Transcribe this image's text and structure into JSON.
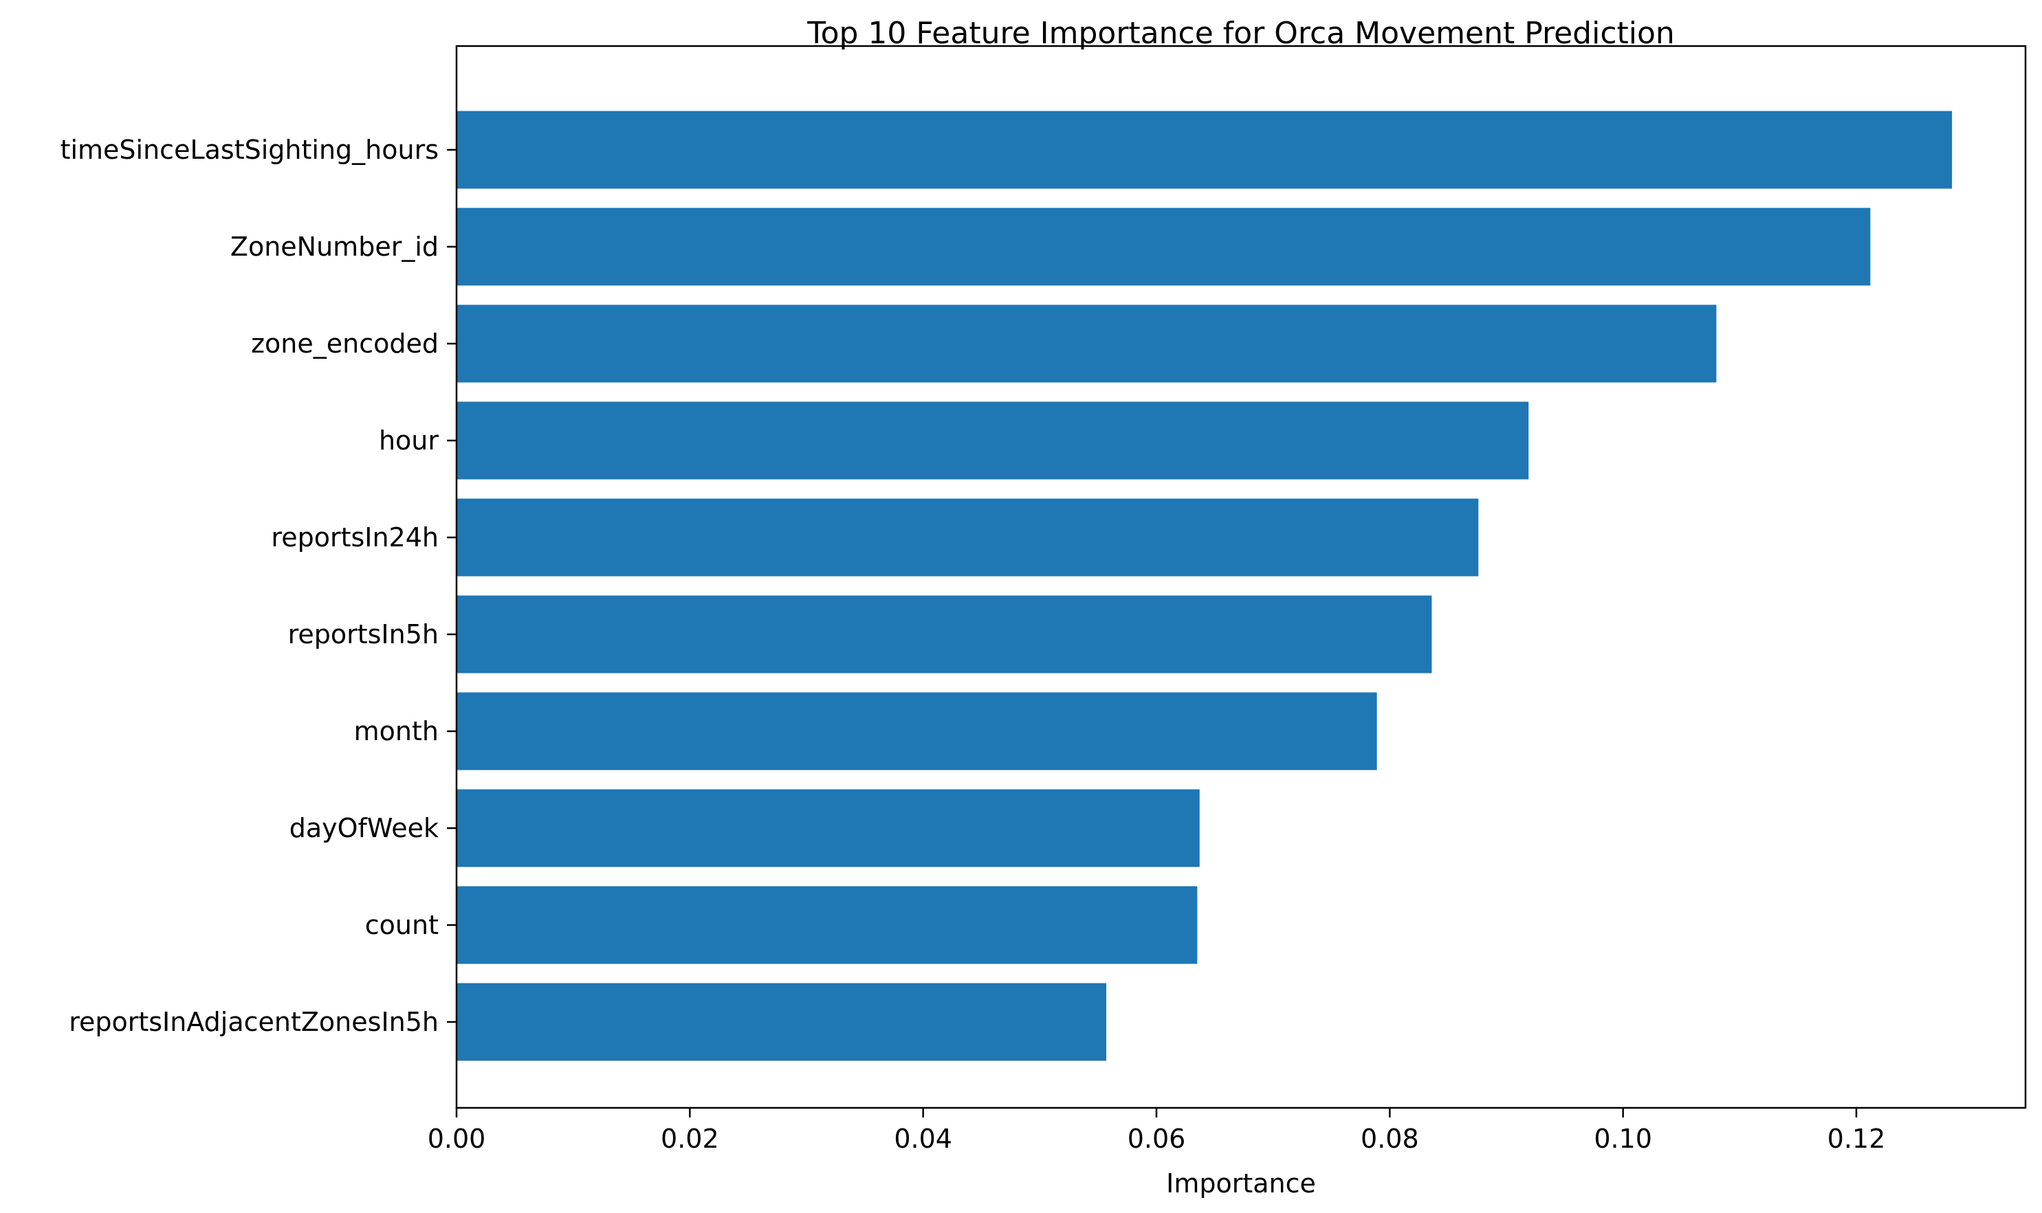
{
  "chart_data": {
    "type": "bar",
    "orientation": "horizontal",
    "title": "Top 10 Feature Importance for Orca Movement Prediction",
    "xlabel": "Importance",
    "ylabel": "",
    "xlim": [
      0,
      0.1345
    ],
    "xticks": [
      0.0,
      0.02,
      0.04,
      0.06,
      0.08,
      0.1,
      0.12
    ],
    "xtick_labels": [
      "0.00",
      "0.02",
      "0.04",
      "0.06",
      "0.08",
      "0.10",
      "0.12"
    ],
    "grid": false,
    "legend": "none",
    "bar_color": "#1f77b4",
    "categories": [
      "timeSinceLastSighting_hours",
      "ZoneNumber_id",
      "zone_encoded",
      "hour",
      "reportsIn24h",
      "reportsIn5h",
      "month",
      "dayOfWeek",
      "count",
      "reportsInAdjacentZonesIn5h"
    ],
    "values": [
      0.1282,
      0.1212,
      0.108,
      0.0919,
      0.0876,
      0.0836,
      0.0789,
      0.0637,
      0.0635,
      0.0557
    ]
  }
}
